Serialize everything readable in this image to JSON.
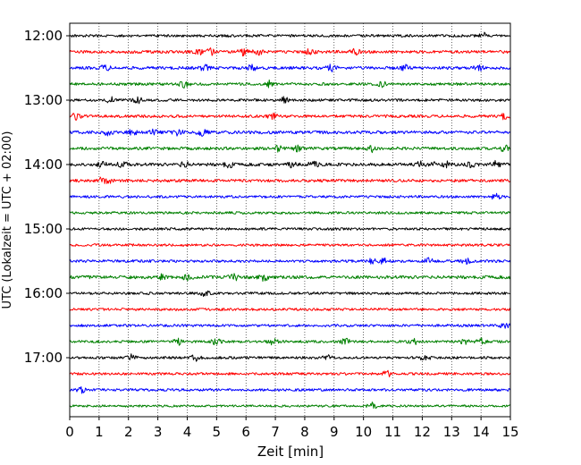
{
  "chart_data": {
    "type": "line",
    "subtype": "helicorder",
    "xlabel": "Zeit  [min]",
    "ylabel": "UTC (Lokalzeit = UTC + 02:00)",
    "xlim": [
      0,
      15
    ],
    "x_ticks": [
      "0",
      "1",
      "2",
      "3",
      "4",
      "5",
      "6",
      "7",
      "8",
      "9",
      "10",
      "11",
      "12",
      "13",
      "14",
      "15"
    ],
    "y_tick_labels": [
      "12:00",
      "13:00",
      "14:00",
      "15:00",
      "16:00",
      "17:00"
    ],
    "grid": "vertical dotted at each minute",
    "trace_interval_min": 15,
    "color_cycle": [
      "#000000",
      "#ff0000",
      "#0000ff",
      "#008000"
    ],
    "traces": [
      {
        "start": "12:00",
        "color": "#000000",
        "activity": 0.35,
        "events_min": [
          14.1
        ]
      },
      {
        "start": "12:15",
        "color": "#ff0000",
        "activity": 0.45,
        "events_min": [
          4.4,
          4.8,
          5.9,
          6.4,
          8.2,
          9.7
        ]
      },
      {
        "start": "12:30",
        "color": "#0000ff",
        "activity": 0.45,
        "events_min": [
          1.2,
          4.6,
          6.2,
          8.9,
          11.4,
          13.9
        ]
      },
      {
        "start": "12:45",
        "color": "#008000",
        "activity": 0.4,
        "events_min": [
          3.9,
          6.8,
          10.6
        ]
      },
      {
        "start": "13:00",
        "color": "#000000",
        "activity": 0.35,
        "events_min": [
          1.4,
          2.3,
          7.3
        ]
      },
      {
        "start": "13:15",
        "color": "#ff0000",
        "activity": 0.4,
        "events_min": [
          0.2,
          6.9,
          14.8
        ]
      },
      {
        "start": "13:30",
        "color": "#0000ff",
        "activity": 0.5,
        "events_min": [
          1.3,
          2.1,
          2.9,
          3.7,
          4.5
        ]
      },
      {
        "start": "13:45",
        "color": "#008000",
        "activity": 0.45,
        "events_min": [
          7.1,
          7.8,
          10.3,
          14.8
        ]
      },
      {
        "start": "14:00",
        "color": "#000000",
        "activity": 0.5,
        "events_min": [
          1.1,
          1.8,
          3.9,
          5.4,
          7.6,
          8.3,
          11.9,
          12.3,
          12.8,
          13.7,
          14.5
        ]
      },
      {
        "start": "14:15",
        "color": "#ff0000",
        "activity": 0.4,
        "events_min": [
          1.1,
          1.3
        ]
      },
      {
        "start": "14:30",
        "color": "#0000ff",
        "activity": 0.3,
        "events_min": [
          14.5
        ]
      },
      {
        "start": "14:45",
        "color": "#008000",
        "activity": 0.3,
        "events_min": []
      },
      {
        "start": "15:00",
        "color": "#000000",
        "activity": 0.3,
        "events_min": []
      },
      {
        "start": "15:15",
        "color": "#ff0000",
        "activity": 0.3,
        "events_min": []
      },
      {
        "start": "15:30",
        "color": "#0000ff",
        "activity": 0.35,
        "events_min": [
          10.3,
          10.7,
          12.2,
          13.5
        ]
      },
      {
        "start": "15:45",
        "color": "#008000",
        "activity": 0.55,
        "events_min": [
          3.1,
          4.0,
          5.6,
          6.6
        ]
      },
      {
        "start": "16:00",
        "color": "#000000",
        "activity": 0.3,
        "events_min": [
          4.6
        ]
      },
      {
        "start": "16:15",
        "color": "#ff0000",
        "activity": 0.3,
        "events_min": []
      },
      {
        "start": "16:30",
        "color": "#0000ff",
        "activity": 0.3,
        "events_min": [
          14.8
        ]
      },
      {
        "start": "16:45",
        "color": "#008000",
        "activity": 0.3,
        "events_min": [
          3.7,
          5.0,
          6.9,
          9.4,
          11.7,
          13.4,
          14.0
        ]
      },
      {
        "start": "17:00",
        "color": "#000000",
        "activity": 0.3,
        "events_min": [
          2.1,
          4.3,
          8.8,
          12.1
        ]
      },
      {
        "start": "17:15",
        "color": "#ff0000",
        "activity": 0.3,
        "events_min": [
          10.8
        ]
      },
      {
        "start": "17:30",
        "color": "#0000ff",
        "activity": 0.3,
        "events_min": [
          0.4
        ]
      },
      {
        "start": "17:45",
        "color": "#008000",
        "activity": 0.2,
        "events_min": [
          10.3
        ]
      }
    ]
  }
}
